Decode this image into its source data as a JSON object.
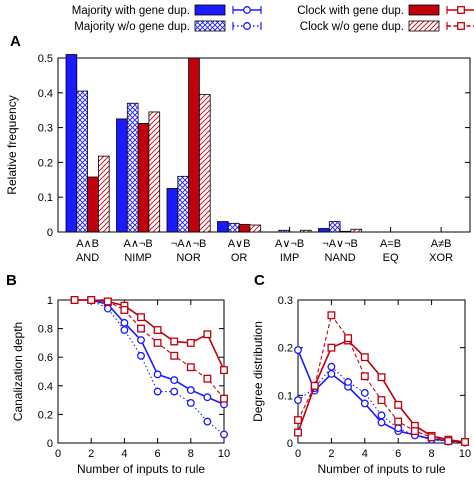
{
  "legend": [
    {
      "label": "Majority with gene dup.",
      "color": "#1a1aff",
      "fill": "solid",
      "line": "solid"
    },
    {
      "label": "Majority w/o gene dup.",
      "color": "#1a1aff",
      "fill": "hatch-cross",
      "line": "dotted"
    },
    {
      "label": "Clock with gene dup.",
      "color": "#c0000d",
      "fill": "solid",
      "line": "solid"
    },
    {
      "label": "Clock w/o gene dup.",
      "color": "#c0000d",
      "fill": "hatch-diag",
      "line": "dashed"
    }
  ],
  "panels": {
    "A": "A",
    "B": "B",
    "C": "C"
  },
  "chart_data": [
    {
      "type": "bar",
      "panel": "A",
      "ylabel": "Relative frequency",
      "ylim": [
        0,
        0.5
      ],
      "yticks": [
        "0",
        "0.1",
        "0.2",
        "0.3",
        "0.4",
        "0.5"
      ],
      "categories": [
        {
          "symbol": "A∧B",
          "name": "AND"
        },
        {
          "symbol": "A∧¬B",
          "name": "NIMP"
        },
        {
          "symbol": "¬A∧¬B",
          "name": "NOR"
        },
        {
          "symbol": "A∨B",
          "name": "OR"
        },
        {
          "symbol": "A∨¬B",
          "name": "IMP"
        },
        {
          "symbol": "¬A∨¬B",
          "name": "NAND"
        },
        {
          "symbol": "A=B",
          "name": "EQ"
        },
        {
          "symbol": "A≠B",
          "name": "XOR"
        }
      ],
      "series": [
        {
          "values": [
            0.51,
            0.325,
            0.125,
            0.03,
            0.0,
            0.01,
            0.0,
            0.0
          ]
        },
        {
          "values": [
            0.405,
            0.37,
            0.16,
            0.025,
            0.005,
            0.03,
            0.0,
            0.0
          ]
        },
        {
          "values": [
            0.158,
            0.312,
            0.5,
            0.022,
            0.0,
            0.002,
            0.0,
            0.0
          ]
        },
        {
          "values": [
            0.218,
            0.345,
            0.395,
            0.02,
            0.005,
            0.008,
            0.0,
            0.0
          ]
        }
      ]
    },
    {
      "type": "line",
      "panel": "B",
      "xlabel": "Number of inputs to rule",
      "ylabel": "Canalization depth",
      "xlim": [
        0,
        10
      ],
      "ylim": [
        0,
        1
      ],
      "xticks": [
        "0",
        "2",
        "4",
        "6",
        "8",
        "10"
      ],
      "yticks": [
        "0",
        "0.2",
        "0.4",
        "0.6",
        "0.8",
        "1"
      ],
      "x": [
        1,
        2,
        3,
        4,
        5,
        6,
        7,
        8,
        9,
        10
      ],
      "series": [
        {
          "values": [
            1.0,
            1.0,
            0.97,
            0.84,
            0.72,
            0.48,
            0.44,
            0.37,
            0.32,
            0.27
          ]
        },
        {
          "values": [
            1.0,
            1.0,
            0.94,
            0.79,
            0.61,
            0.36,
            0.36,
            0.28,
            0.15,
            0.06
          ]
        },
        {
          "values": [
            1.0,
            1.0,
            0.99,
            0.96,
            0.88,
            0.79,
            0.71,
            0.7,
            0.76,
            0.51
          ]
        },
        {
          "values": [
            1.0,
            1.0,
            0.99,
            0.93,
            0.8,
            0.7,
            0.61,
            0.53,
            0.45,
            0.31
          ]
        }
      ]
    },
    {
      "type": "line",
      "panel": "C",
      "xlabel": "Number of inputs to rule",
      "ylabel": "Degree distribution",
      "xlim": [
        0,
        10
      ],
      "ylim": [
        0,
        0.3
      ],
      "xticks": [
        "0",
        "2",
        "4",
        "6",
        "8",
        "10"
      ],
      "yticks": [
        "0",
        "0.1",
        "0.2",
        "0.3"
      ],
      "x": [
        0,
        1,
        2,
        3,
        4,
        5,
        6,
        7,
        8,
        9,
        10
      ],
      "series": [
        {
          "values": [
            0.195,
            0.11,
            0.145,
            0.118,
            0.083,
            0.043,
            0.025,
            0.017,
            0.008,
            0.005,
            0.002
          ]
        },
        {
          "values": [
            0.09,
            0.115,
            0.16,
            0.128,
            0.105,
            0.058,
            0.031,
            0.016,
            0.007,
            0.003,
            0.001
          ]
        },
        {
          "values": [
            0.022,
            0.12,
            0.2,
            0.215,
            0.18,
            0.138,
            0.08,
            0.036,
            0.015,
            0.007,
            0.002
          ]
        },
        {
          "values": [
            0.048,
            0.12,
            0.268,
            0.22,
            0.14,
            0.09,
            0.045,
            0.025,
            0.012,
            0.004,
            0.002
          ]
        }
      ]
    }
  ]
}
